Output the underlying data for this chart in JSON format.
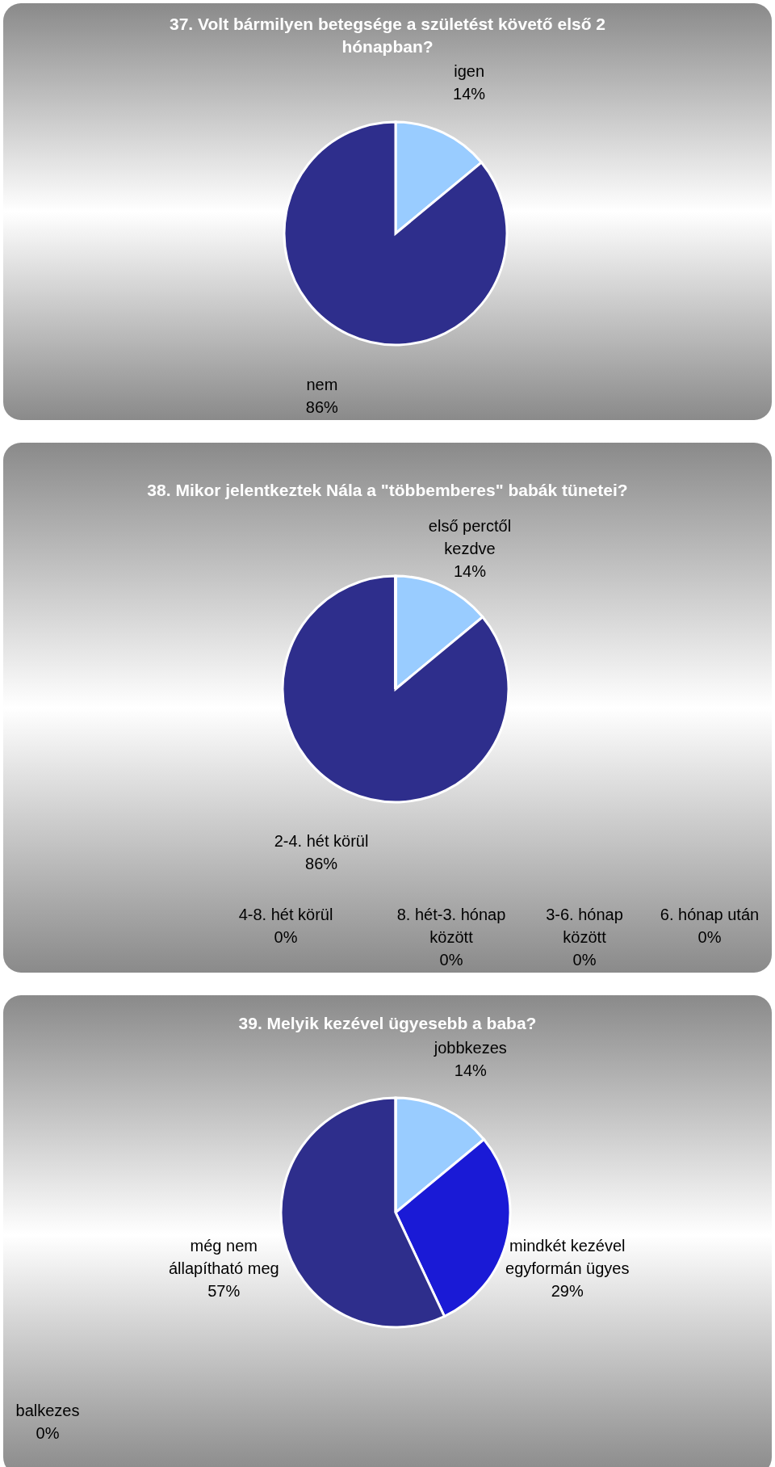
{
  "chart_data": [
    {
      "type": "pie",
      "title": "37. Volt bármilyen betegsége a születést követő első 2 hónapban?",
      "categories": [
        "igen",
        "nem"
      ],
      "values": [
        14,
        86
      ],
      "value_labels": [
        "14%",
        "86%"
      ],
      "colors": [
        "#99ccff",
        "#2e2e8c"
      ]
    },
    {
      "type": "pie",
      "title": "38. Mikor jelentkeztek Nála a \"többemberes\" babák tünetei?",
      "categories": [
        "első perctől kezdve",
        "2-4. hét körül",
        "4-8. hét körül",
        "8. hét-3. hónap között",
        "3-6. hónap között",
        "6. hónap után"
      ],
      "values": [
        14,
        86,
        0,
        0,
        0,
        0
      ],
      "value_labels": [
        "14%",
        "86%",
        "0%",
        "0%",
        "0%",
        "0%"
      ],
      "colors": [
        "#99ccff",
        "#2e2e8c",
        "#6666cc",
        "#9999ff",
        "#3366cc",
        "#000080"
      ]
    },
    {
      "type": "pie",
      "title": "39. Melyik kezével ügyesebb a baba?",
      "categories": [
        "jobbkezes",
        "mindkét kezével egyformán ügyes",
        "még nem állapítható meg",
        "balkezes"
      ],
      "values": [
        14,
        29,
        57,
        0
      ],
      "value_labels": [
        "14%",
        "29%",
        "57%",
        "0%"
      ],
      "colors": [
        "#99ccff",
        "#1a1ad6",
        "#2e2e8c",
        "#6666cc"
      ]
    }
  ]
}
